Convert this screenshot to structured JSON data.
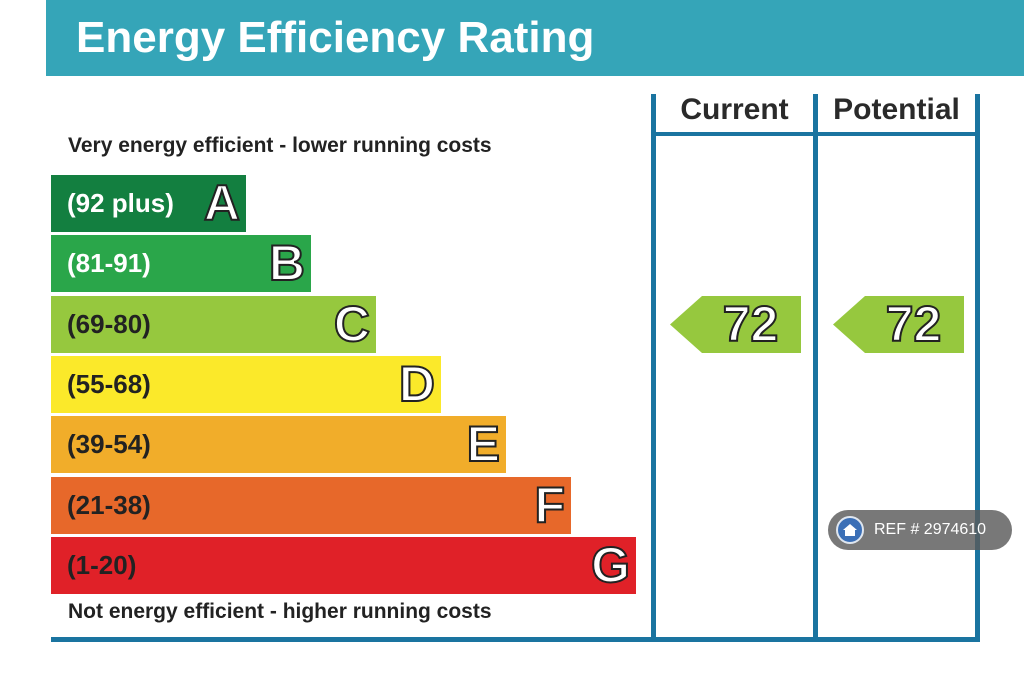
{
  "title": "Energy Efficiency Rating",
  "columns": {
    "current": "Current",
    "potential": "Potential"
  },
  "captions": {
    "top": "Very energy efficient - lower running costs",
    "bottom": "Not energy efficient - higher running costs"
  },
  "chart_data": {
    "type": "bar",
    "categories": [
      "A",
      "B",
      "C",
      "D",
      "E",
      "F",
      "G"
    ],
    "ranges": [
      "(92 plus)",
      "(81-91)",
      "(69-80)",
      "(55-68)",
      "(39-54)",
      "(21-38)",
      "(1-20)"
    ],
    "colors": [
      "#137f40",
      "#2aa64a",
      "#96c83e",
      "#fbe92a",
      "#f1ad2a",
      "#e7682a",
      "#e02128"
    ],
    "range_text_colors": [
      "#ffffff",
      "#ffffff",
      "#222222",
      "#222222",
      "#222222",
      "#222222",
      "#222222"
    ],
    "current": {
      "value": 72,
      "band": "C",
      "color": "#96c83e"
    },
    "potential": {
      "value": 72,
      "band": "C",
      "color": "#96c83e"
    }
  },
  "ref_badge": {
    "text": "REF # 2974610",
    "icon": "home-icon"
  }
}
